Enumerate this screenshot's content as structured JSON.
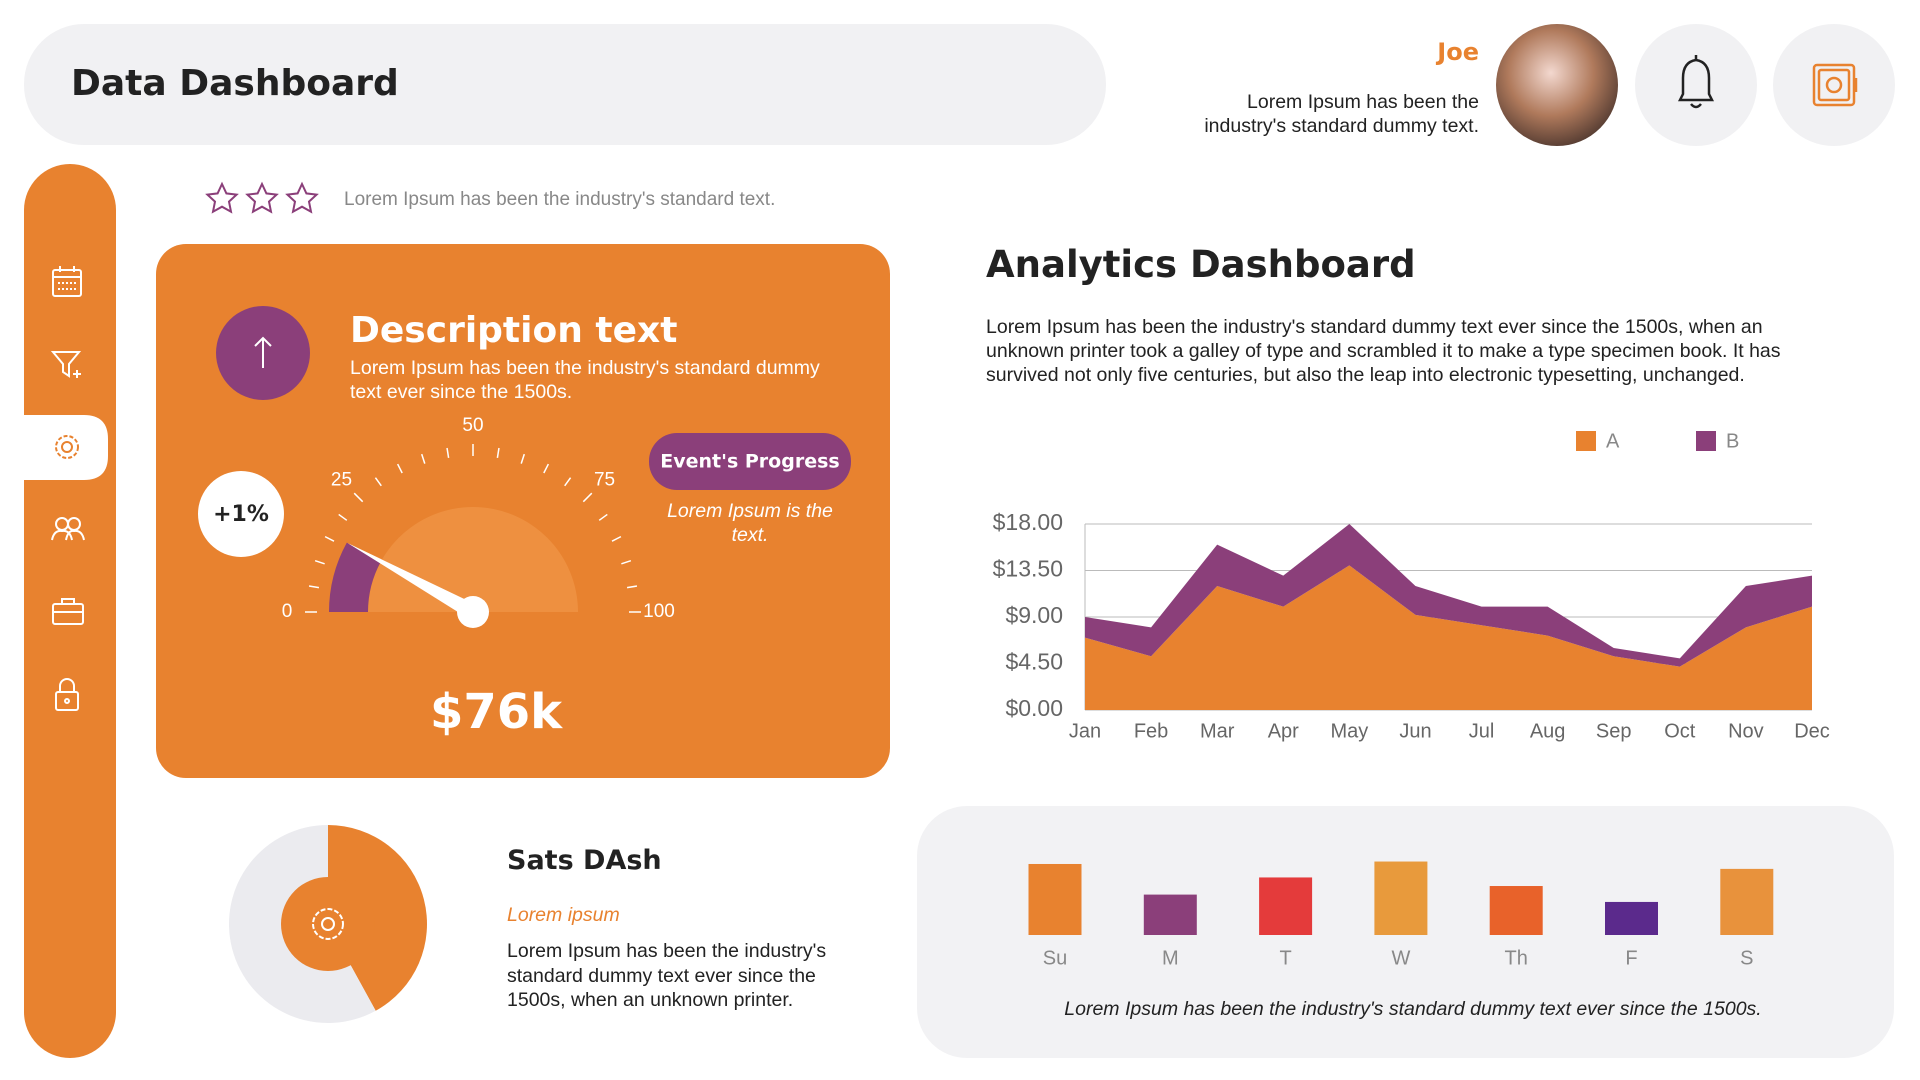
{
  "header": {
    "title": "Data Dashboard"
  },
  "user": {
    "name": "Joe",
    "text": "Lorem Ipsum has been the industry's standard dummy text."
  },
  "rating": {
    "text": "Lorem Ipsum has been the industry's standard text."
  },
  "description_card": {
    "title": "Description text",
    "text": "Lorem Ipsum has been the industry's standard dummy text ever since the 1500s.",
    "change": "+1%",
    "button": "Event's Progress",
    "note": "Lorem Ipsum is the text.",
    "amount": "$76k"
  },
  "analytics": {
    "title": "Analytics Dashboard",
    "text": "Lorem Ipsum has been the industry's standard dummy text ever since the 1500s, when an unknown printer took a galley of type and scrambled it to make a type specimen book. It has survived not only five centuries, but also the leap into electronic typesetting, unchanged."
  },
  "stats": {
    "title": "Sats DAsh",
    "subtitle": "Lorem ipsum",
    "text": "Lorem Ipsum has been the industry's standard dummy text ever since the 1500s, when an unknown printer."
  },
  "chart_data": [
    {
      "type": "area",
      "stacked": true,
      "categories": [
        "Jan",
        "Feb",
        "Mar",
        "Apr",
        "May",
        "Jun",
        "Jul",
        "Aug",
        "Sep",
        "Oct",
        "Nov",
        "Dec"
      ],
      "series": [
        {
          "name": "A",
          "color": "#e8822f",
          "values": [
            7,
            5.2,
            12,
            10,
            14,
            9.2,
            8.2,
            7.2,
            5.2,
            4.2,
            8,
            10
          ]
        },
        {
          "name": "B",
          "color": "#8b3f7a",
          "values": [
            2,
            2.8,
            4,
            3,
            4,
            2.8,
            1.8,
            2.8,
            0.8,
            0.8,
            4,
            3
          ]
        }
      ],
      "ylim": [
        0,
        18
      ],
      "yticks": [
        {
          "value": 0,
          "label": "$0.00"
        },
        {
          "value": 4.5,
          "label": "$4.50"
        },
        {
          "value": 9,
          "label": "$9.00"
        },
        {
          "value": 13.5,
          "label": "$13.50"
        },
        {
          "value": 18,
          "label": "$18.00"
        }
      ],
      "grid": true,
      "legend": "top-right"
    },
    {
      "type": "gauge",
      "value": 16,
      "ylim": [
        0,
        100
      ],
      "yticks": [
        0,
        25,
        50,
        75,
        100
      ],
      "minor_ticks": [
        5,
        10,
        15,
        20,
        30,
        35,
        40,
        45,
        55,
        60,
        65,
        70,
        80,
        85,
        90,
        95
      ],
      "color": "#8b3f7a"
    },
    {
      "type": "pie",
      "values": [
        42,
        58
      ],
      "colors": [
        "#e8822f",
        "#ebebef"
      ]
    },
    {
      "type": "bar",
      "categories": [
        "Su",
        "M",
        "T",
        "W",
        "Th",
        "F",
        "S"
      ],
      "values": [
        58,
        33,
        47,
        60,
        40,
        27,
        54
      ],
      "colors": [
        "#e8822f",
        "#8b3f7a",
        "#e43b3b",
        "#e89a3c",
        "#e8622a",
        "#5b2a8c",
        "#e8923c"
      ],
      "caption": "Lorem Ipsum has been the industry's standard dummy text ever since the 1500s."
    }
  ]
}
